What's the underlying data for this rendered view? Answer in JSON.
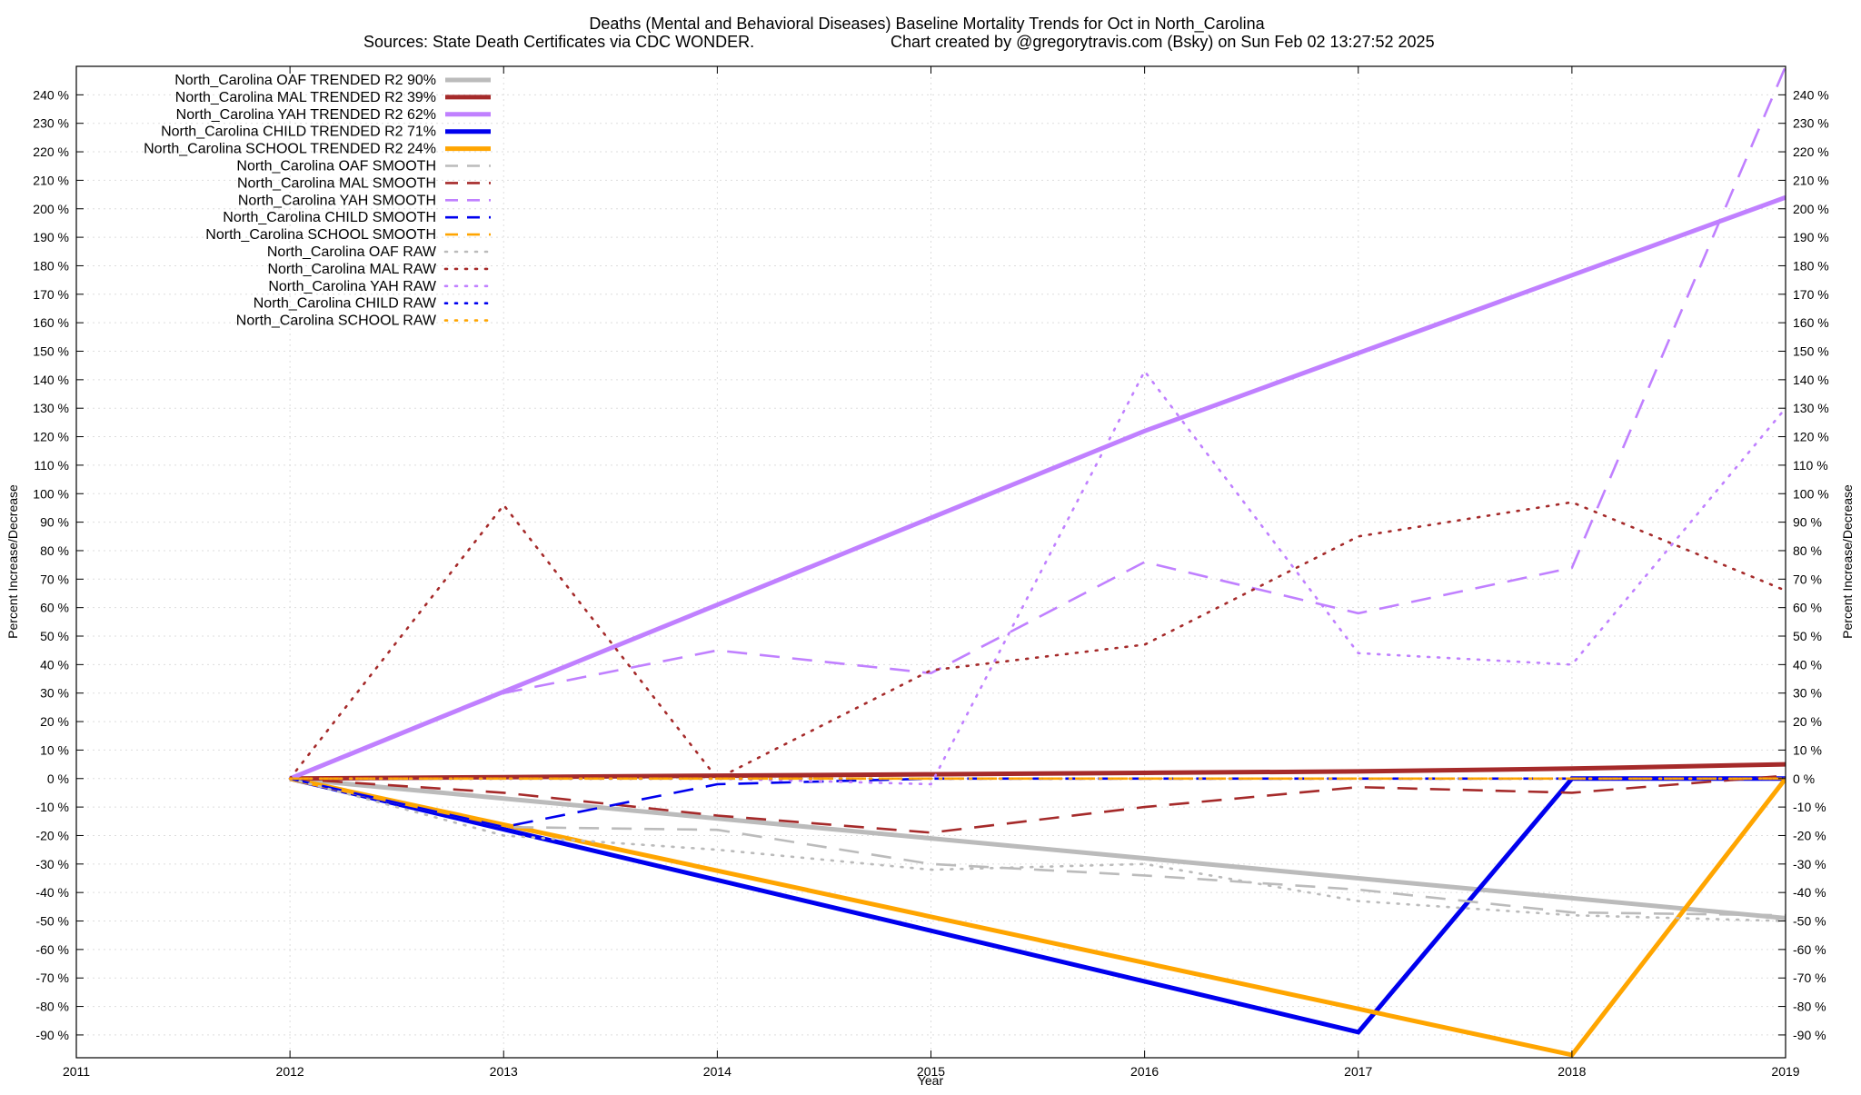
{
  "chart_data": {
    "type": "line",
    "title": "Deaths (Mental and Behavioral Diseases)  Baseline Mortality Trends for Oct in North_Carolina",
    "subtitle_left": "Sources: State Death Certificates via CDC WONDER.",
    "subtitle_right": "Chart created by @gregorytravis.com (Bsky) on Sun Feb 02 13:27:52 2025",
    "xlabel": "Year",
    "ylabel_left": "Percent Increase/Decrease",
    "ylabel_right": "Percent Increase/Decrease",
    "xlim": [
      2011,
      2019
    ],
    "ylim": [
      -98,
      250
    ],
    "x_ticks": [
      2011,
      2012,
      2013,
      2014,
      2015,
      2016,
      2017,
      2018,
      2019
    ],
    "y_ticks": [
      -90,
      -80,
      -70,
      -60,
      -50,
      -40,
      -30,
      -20,
      -10,
      0,
      10,
      20,
      30,
      40,
      50,
      60,
      70,
      80,
      90,
      100,
      110,
      120,
      130,
      140,
      150,
      160,
      170,
      180,
      190,
      200,
      210,
      220,
      230,
      240
    ],
    "y_tick_suffix": " %",
    "grid": true,
    "legend_position": "top-left",
    "series": [
      {
        "name": "North_Carolina OAF TRENDED R2  90%",
        "style": "solid",
        "color": "#bbbbbb",
        "x": [
          2012,
          2013,
          2014,
          2015,
          2016,
          2017,
          2018,
          2019
        ],
        "values": [
          0,
          -7,
          -14,
          -21,
          -28,
          -35,
          -42,
          -49
        ]
      },
      {
        "name": "North_Carolina MAL TRENDED R2  39%",
        "style": "solid",
        "color": "#a52a2a",
        "x": [
          2012,
          2013,
          2014,
          2015,
          2016,
          2017,
          2018,
          2019
        ],
        "values": [
          0,
          0.5,
          1,
          1.5,
          2,
          2.5,
          3.5,
          5
        ]
      },
      {
        "name": "North_Carolina YAH TRENDED R2  62%",
        "style": "solid",
        "color": "#c080ff",
        "x": [
          2012,
          2016,
          2019
        ],
        "values": [
          0,
          122,
          204
        ]
      },
      {
        "name": "North_Carolina CHILD TRENDED R2  71%",
        "style": "solid",
        "color": "#0000ee",
        "x": [
          2012,
          2017,
          2018,
          2019
        ],
        "values": [
          0,
          -89,
          0,
          0
        ]
      },
      {
        "name": "North_Carolina SCHOOL TRENDED R2  24%",
        "style": "solid",
        "color": "#ffa500",
        "x": [
          2012,
          2018,
          2019
        ],
        "values": [
          0,
          -97,
          0
        ]
      },
      {
        "name": "North_Carolina OAF SMOOTH",
        "style": "dashed",
        "color": "#bbbbbb",
        "x": [
          2012,
          2013,
          2014,
          2015,
          2016,
          2017,
          2018,
          2019
        ],
        "values": [
          0,
          -17,
          -18,
          -30,
          -34,
          -39,
          -47,
          -48
        ]
      },
      {
        "name": "North_Carolina MAL SMOOTH",
        "style": "dashed",
        "color": "#a52a2a",
        "x": [
          2012,
          2013,
          2014,
          2015,
          2016,
          2017,
          2018,
          2019
        ],
        "values": [
          0,
          -5,
          -13,
          -19,
          -10,
          -3,
          -5,
          1
        ]
      },
      {
        "name": "North_Carolina YAH SMOOTH",
        "style": "dashed",
        "color": "#c080ff",
        "x": [
          2012,
          2013,
          2014,
          2015,
          2016,
          2017,
          2018,
          2019
        ],
        "values": [
          0,
          30,
          45,
          37,
          76,
          58,
          74,
          250
        ]
      },
      {
        "name": "North_Carolina CHILD SMOOTH",
        "style": "dashed",
        "color": "#0000ee",
        "x": [
          2012,
          2013,
          2014,
          2015,
          2016,
          2017,
          2018,
          2019
        ],
        "values": [
          0,
          -17,
          -2,
          0,
          0,
          0,
          0,
          0
        ]
      },
      {
        "name": "North_Carolina SCHOOL SMOOTH",
        "style": "dashed",
        "color": "#ffa500",
        "x": [
          2012,
          2013,
          2014,
          2015,
          2016,
          2017,
          2018,
          2019
        ],
        "values": [
          0,
          0,
          0,
          0,
          0,
          0,
          0,
          0
        ]
      },
      {
        "name": "North_Carolina OAF RAW",
        "style": "dotted",
        "color": "#bbbbbb",
        "x": [
          2012,
          2013,
          2014,
          2015,
          2016,
          2017,
          2018,
          2019
        ],
        "values": [
          0,
          -20,
          -25,
          -32,
          -30,
          -43,
          -48,
          -50
        ]
      },
      {
        "name": "North_Carolina MAL RAW",
        "style": "dotted",
        "color": "#a52a2a",
        "x": [
          2012,
          2013,
          2014,
          2015,
          2016,
          2017,
          2018,
          2019
        ],
        "values": [
          0,
          96,
          0,
          38,
          47,
          85,
          97,
          66
        ]
      },
      {
        "name": "North_Carolina YAH RAW",
        "style": "dotted",
        "color": "#c080ff",
        "x": [
          2012,
          2013,
          2014,
          2015,
          2016,
          2017,
          2018,
          2019
        ],
        "values": [
          0,
          0,
          0,
          -2,
          143,
          44,
          40,
          130
        ]
      },
      {
        "name": "North_Carolina CHILD RAW",
        "style": "dotted",
        "color": "#0000ee",
        "x": [
          2012,
          2013,
          2014,
          2015,
          2016,
          2017,
          2018,
          2019
        ],
        "values": [
          0,
          0,
          0,
          0,
          0,
          0,
          0,
          0
        ]
      },
      {
        "name": "North_Carolina SCHOOL RAW",
        "style": "dotted",
        "color": "#ffa500",
        "x": [
          2012,
          2013,
          2014,
          2015,
          2016,
          2017,
          2018,
          2019
        ],
        "values": [
          0,
          0,
          0,
          0,
          0,
          0,
          0,
          0
        ]
      }
    ]
  }
}
